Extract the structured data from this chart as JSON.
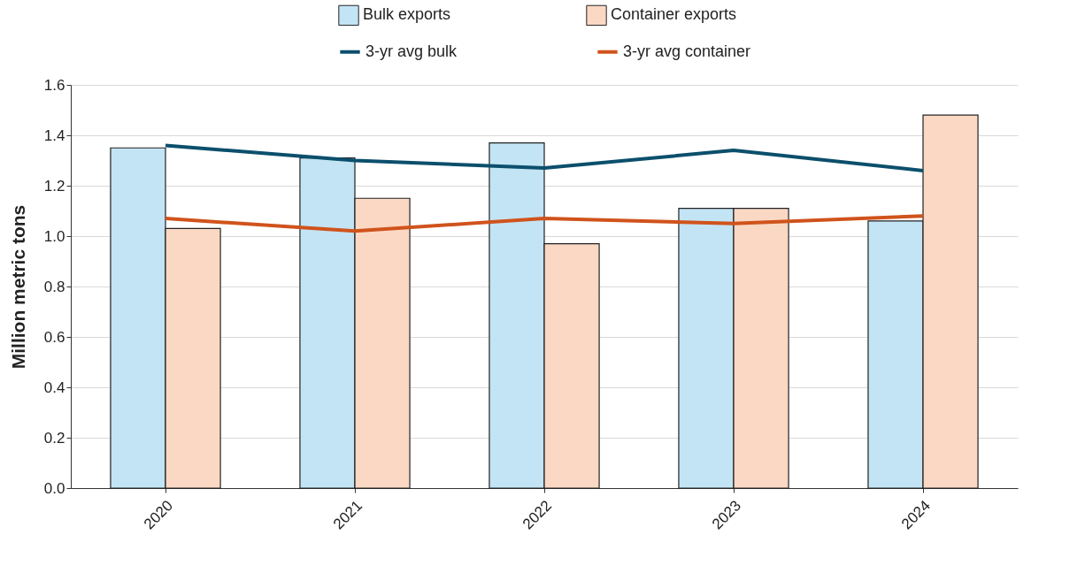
{
  "chart_data": {
    "type": "bar",
    "ylabel": "Million metric tons",
    "categories": [
      "2020",
      "2021",
      "2022",
      "2023",
      "2024"
    ],
    "series": [
      {
        "name": "Bulk exports",
        "color": "#c3e4f4",
        "values": [
          1.35,
          1.31,
          1.37,
          1.11,
          1.06
        ]
      },
      {
        "name": "Container exports",
        "color": "#fad8c4",
        "values": [
          1.03,
          1.15,
          0.97,
          1.11,
          1.48
        ]
      },
      {
        "name": "3-yr avg bulk",
        "type": "line",
        "color": "#0b4f6c",
        "values": [
          1.36,
          1.3,
          1.27,
          1.34,
          1.26
        ]
      },
      {
        "name": "3-yr avg container",
        "type": "line",
        "color": "#d0531c",
        "values": [
          1.07,
          1.02,
          1.07,
          1.05,
          1.08
        ]
      }
    ],
    "ylim": [
      0,
      1.6
    ],
    "yticks": [
      {
        "value": 0,
        "label": "0.0"
      },
      0.2,
      0.4,
      0.6,
      0.8,
      {
        "value": 1,
        "label": "1.0"
      },
      1.2,
      1.4,
      1.6
    ],
    "grid": "y",
    "legend": "top"
  }
}
